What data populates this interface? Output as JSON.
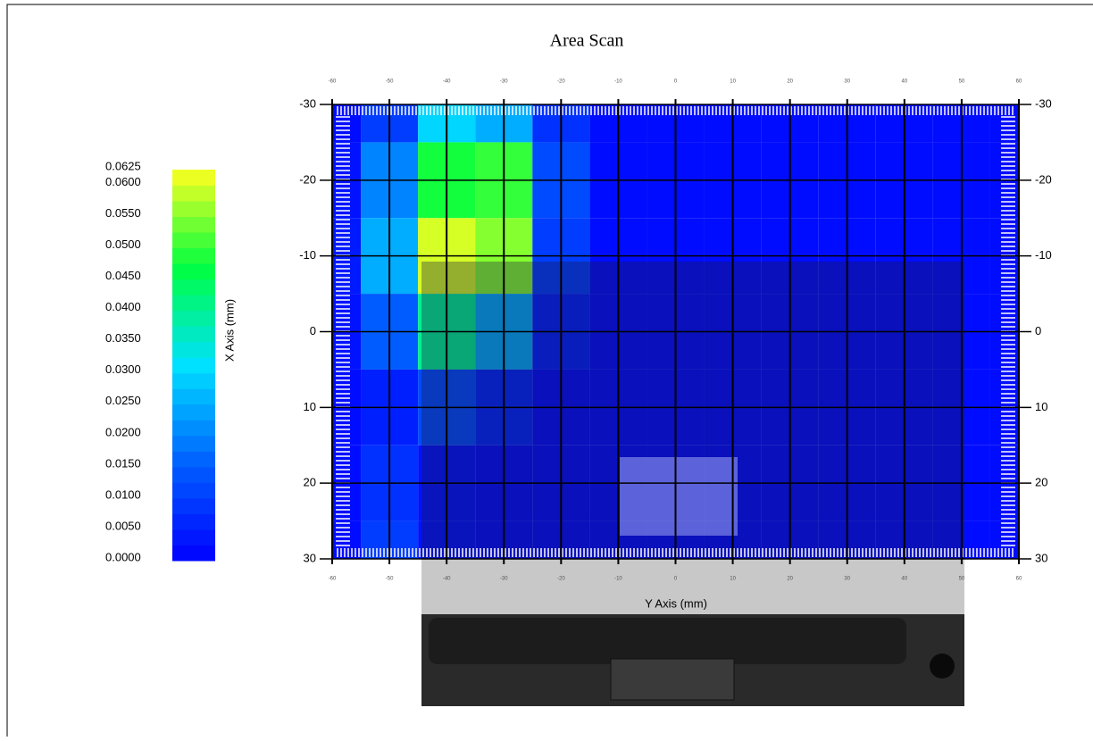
{
  "chart_data": {
    "type": "heatmap",
    "title": "Area Scan",
    "x_label": "Y Axis (mm)",
    "y_label": "X Axis (mm)",
    "x": [
      -60,
      -50,
      -40,
      -30,
      -20,
      -10,
      0,
      10,
      20,
      30,
      40,
      50,
      60
    ],
    "y": [
      -30,
      -20,
      -10,
      0,
      10,
      20,
      30
    ],
    "z": [
      [
        0.002,
        0.01,
        0.03,
        0.025,
        0.008,
        0.002,
        0.002,
        0.002,
        0.002,
        0.002,
        0.002,
        0.002,
        0.002
      ],
      [
        0.003,
        0.02,
        0.048,
        0.05,
        0.012,
        0.002,
        0.002,
        0.002,
        0.002,
        0.002,
        0.002,
        0.002,
        0.002
      ],
      [
        0.004,
        0.025,
        0.06,
        0.055,
        0.01,
        0.002,
        0.002,
        0.002,
        0.002,
        0.002,
        0.002,
        0.002,
        0.002
      ],
      [
        0.003,
        0.015,
        0.04,
        0.025,
        0.005,
        0.002,
        0.002,
        0.002,
        0.002,
        0.002,
        0.002,
        0.002,
        0.002
      ],
      [
        0.002,
        0.005,
        0.012,
        0.006,
        0.002,
        0.002,
        0.002,
        0.002,
        0.002,
        0.002,
        0.002,
        0.002,
        0.002
      ],
      [
        0.002,
        0.008,
        0.003,
        0.002,
        0.002,
        0.002,
        0.002,
        0.002,
        0.002,
        0.002,
        0.002,
        0.002,
        0.002
      ],
      [
        0.002,
        0.01,
        0.003,
        0.002,
        0.002,
        0.002,
        0.002,
        0.002,
        0.002,
        0.002,
        0.002,
        0.002,
        0.002
      ]
    ],
    "xlim": [
      -60,
      60
    ],
    "xticks": [
      -60,
      -50,
      -40,
      -30,
      -20,
      -10,
      0,
      10,
      20,
      30,
      40,
      50,
      60
    ],
    "ylim": [
      -30,
      30
    ],
    "yticks": [
      -30,
      -20,
      -10,
      0,
      10,
      20,
      30
    ],
    "zlim": [
      0,
      0.0625
    ],
    "zticks": [
      {
        "value": 0,
        "label": "0.0000"
      },
      {
        "value": 0.005,
        "label": "0.0050"
      },
      {
        "value": 0.01,
        "label": "0.0100"
      },
      {
        "value": 0.015,
        "label": "0.0150"
      },
      {
        "value": 0.02,
        "label": "0.0200"
      },
      {
        "value": 0.025,
        "label": "0.0250"
      },
      {
        "value": 0.03,
        "label": "0.0300"
      },
      {
        "value": 0.035,
        "label": "0.0350"
      },
      {
        "value": 0.04,
        "label": "0.0400"
      },
      {
        "value": 0.045,
        "label": "0.0450"
      },
      {
        "value": 0.05,
        "label": "0.0500"
      },
      {
        "value": 0.055,
        "label": "0.0550"
      },
      {
        "value": 0.06,
        "label": "0.0600"
      },
      {
        "value": 0.0625,
        "label": "0.0625"
      }
    ],
    "colorscale": [
      "#0000ff",
      "#0060ff",
      "#00e0ff",
      "#00ff40",
      "#ffff20"
    ],
    "grid": true
  }
}
